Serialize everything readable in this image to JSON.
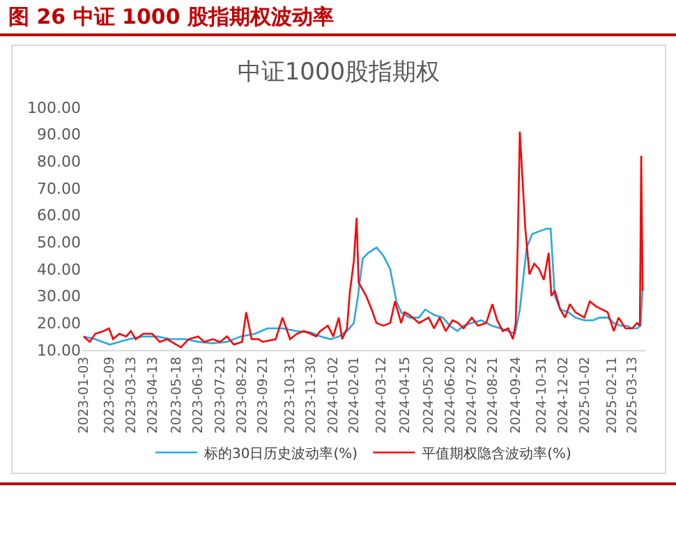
{
  "chart_data": {
    "type": "line",
    "title": "图 26    中证 1000 股指期权波动率",
    "subtitle": "中证1000股指期权",
    "xlim": [
      "2023-01-01",
      "2025-04-01"
    ],
    "xticks": [
      "2023-01-03",
      "2023-02-09",
      "2023-03-13",
      "2023-04-13",
      "2023-05-18",
      "2023-06-19",
      "2023-07-21",
      "2023-08-22",
      "2023-09-21",
      "2023-10-31",
      "2023-11-30",
      "2024-01-02",
      "2024-02-01",
      "2024-03-12",
      "2024-04-15",
      "2024-05-20",
      "2024-06-20",
      "2024-07-22",
      "2024-08-21",
      "2024-09-24",
      "2024-10-31",
      "2024-12-02",
      "2025-01-02",
      "2025-02-11",
      "2025-03-13"
    ],
    "ylim": [
      10,
      100
    ],
    "yticks": [
      {
        "value": 10,
        "label": "10.00"
      },
      {
        "value": 20,
        "label": "20.00"
      },
      {
        "value": 30,
        "label": "30.00"
      },
      {
        "value": 40,
        "label": "40.00"
      },
      {
        "value": 50,
        "label": "50.00"
      },
      {
        "value": 60,
        "label": "60.00"
      },
      {
        "value": 70,
        "label": "70.00"
      },
      {
        "value": 80,
        "label": "80.00"
      },
      {
        "value": 90,
        "label": "90.00"
      },
      {
        "value": 100,
        "label": "100.00"
      }
    ],
    "grid": false,
    "legend": "bottom",
    "marker": "none",
    "line_style": "solid",
    "series": [
      {
        "name": "标的30日历史波动率(%)",
        "color": "#29a8e0",
        "x": [
          "2023-01-03",
          "2023-01-20",
          "2023-02-10",
          "2023-02-24",
          "2023-03-10",
          "2023-03-31",
          "2023-04-20",
          "2023-05-10",
          "2023-05-31",
          "2023-06-20",
          "2023-07-10",
          "2023-07-31",
          "2023-08-20",
          "2023-09-10",
          "2023-09-28",
          "2023-10-20",
          "2023-11-10",
          "2023-11-30",
          "2023-12-15",
          "2023-12-29",
          "2024-01-10",
          "2024-01-22",
          "2024-02-01",
          "2024-02-07",
          "2024-02-14",
          "2024-02-22",
          "2024-03-05",
          "2024-03-15",
          "2024-03-25",
          "2024-04-03",
          "2024-04-10",
          "2024-04-22",
          "2024-05-06",
          "2024-05-15",
          "2024-05-28",
          "2024-06-10",
          "2024-06-20",
          "2024-07-01",
          "2024-07-10",
          "2024-07-22",
          "2024-08-05",
          "2024-08-20",
          "2024-09-02",
          "2024-09-13",
          "2024-09-23",
          "2024-09-30",
          "2024-10-10",
          "2024-10-18",
          "2024-10-28",
          "2024-11-08",
          "2024-11-14",
          "2024-11-20",
          "2024-11-28",
          "2024-12-10",
          "2024-12-20",
          "2025-01-02",
          "2025-01-15",
          "2025-01-24",
          "2025-02-05",
          "2025-02-14",
          "2025-02-24",
          "2025-03-05",
          "2025-03-13",
          "2025-03-20",
          "2025-03-25",
          "2025-03-28"
        ],
        "values": [
          15,
          14,
          12,
          13,
          14,
          15,
          15,
          14,
          14,
          13,
          12.5,
          13,
          15,
          16,
          18,
          18,
          17,
          16.5,
          15,
          14,
          15,
          17,
          20,
          30,
          44,
          46,
          48,
          45,
          40,
          28,
          24,
          22,
          22,
          25,
          23,
          22,
          19,
          17,
          19,
          20,
          21,
          19,
          18,
          17,
          16,
          25,
          48,
          53,
          54,
          55,
          55,
          30,
          25,
          24,
          22,
          21,
          21,
          22,
          22,
          20,
          19,
          19,
          18,
          18,
          19,
          33
        ]
      },
      {
        "name": "平值期权隐含波动率(%)",
        "color": "#ff0000",
        "x": [
          "2023-01-03",
          "2023-01-12",
          "2023-01-20",
          "2023-02-01",
          "2023-02-09",
          "2023-02-15",
          "2023-02-24",
          "2023-03-06",
          "2023-03-13",
          "2023-03-20",
          "2023-03-31",
          "2023-04-13",
          "2023-04-24",
          "2023-05-05",
          "2023-05-18",
          "2023-05-25",
          "2023-06-05",
          "2023-06-19",
          "2023-06-28",
          "2023-07-10",
          "2023-07-21",
          "2023-07-31",
          "2023-08-10",
          "2023-08-22",
          "2023-08-28",
          "2023-09-05",
          "2023-09-15",
          "2023-09-21",
          "2023-10-10",
          "2023-10-20",
          "2023-10-31",
          "2023-11-10",
          "2023-11-20",
          "2023-11-30",
          "2023-12-08",
          "2023-12-14",
          "2023-12-25",
          "2024-01-02",
          "2024-01-10",
          "2024-01-15",
          "2024-01-22",
          "2024-01-26",
          "2024-02-01",
          "2024-02-05",
          "2024-02-08",
          "2024-02-19",
          "2024-02-27",
          "2024-03-05",
          "2024-03-15",
          "2024-03-25",
          "2024-04-01",
          "2024-04-10",
          "2024-04-15",
          "2024-04-22",
          "2024-05-06",
          "2024-05-20",
          "2024-05-28",
          "2024-06-05",
          "2024-06-14",
          "2024-06-24",
          "2024-07-02",
          "2024-07-10",
          "2024-07-22",
          "2024-07-31",
          "2024-08-12",
          "2024-08-21",
          "2024-08-28",
          "2024-09-05",
          "2024-09-13",
          "2024-09-20",
          "2024-09-24",
          "2024-09-27",
          "2024-09-30",
          "2024-10-08",
          "2024-10-14",
          "2024-10-21",
          "2024-10-28",
          "2024-11-04",
          "2024-11-11",
          "2024-11-15",
          "2024-11-20",
          "2024-11-28",
          "2024-12-05",
          "2024-12-12",
          "2024-12-20",
          "2025-01-02",
          "2025-01-10",
          "2025-01-20",
          "2025-02-05",
          "2025-02-14",
          "2025-02-21",
          "2025-03-03",
          "2025-03-13",
          "2025-03-20",
          "2025-03-24",
          "2025-03-26",
          "2025-03-28"
        ],
        "values": [
          15,
          13,
          16,
          17,
          18,
          14,
          16,
          15,
          17,
          14,
          16,
          16,
          13,
          14,
          12,
          11,
          14,
          15,
          13,
          14,
          13,
          15,
          12,
          13,
          24,
          14,
          14,
          13,
          14,
          22,
          14,
          16,
          17,
          16,
          15,
          17,
          19,
          15,
          22,
          14,
          18,
          31,
          43,
          59,
          35,
          30,
          25,
          20,
          19,
          20,
          28,
          20,
          24,
          23,
          20,
          22,
          18,
          22,
          17,
          21,
          20,
          18,
          22,
          19,
          20,
          27,
          21,
          17,
          18,
          14,
          20,
          50,
          91,
          55,
          38,
          42,
          40,
          36,
          46,
          30,
          32,
          25,
          22,
          27,
          24,
          22,
          28,
          26,
          24,
          17,
          22,
          18,
          18,
          20,
          19,
          82,
          32
        ]
      }
    ]
  }
}
